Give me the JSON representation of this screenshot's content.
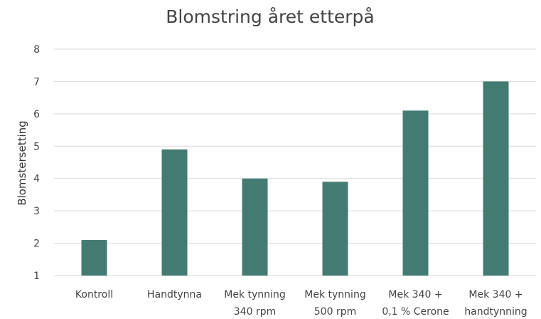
{
  "chart_data": {
    "type": "bar",
    "title": "Blomstring året etterpå",
    "xlabel": "",
    "ylabel": "Blomstersetting",
    "ylim": [
      1,
      8
    ],
    "yticks": [
      "1",
      "2",
      "3",
      "4",
      "5",
      "6",
      "7",
      "8"
    ],
    "categories": [
      [
        "Kontroll"
      ],
      [
        "Handtynna"
      ],
      [
        "Mek tynning",
        "340 rpm"
      ],
      [
        "Mek tynning",
        "500 rpm"
      ],
      [
        "Mek 340 +",
        "0,1 % Cerone"
      ],
      [
        "Mek 340 +",
        "handtynning"
      ]
    ],
    "values": [
      2.1,
      4.9,
      4.0,
      3.9,
      6.1,
      7.0
    ],
    "grid": true,
    "legend": "none",
    "bar_color": "#437b72"
  }
}
